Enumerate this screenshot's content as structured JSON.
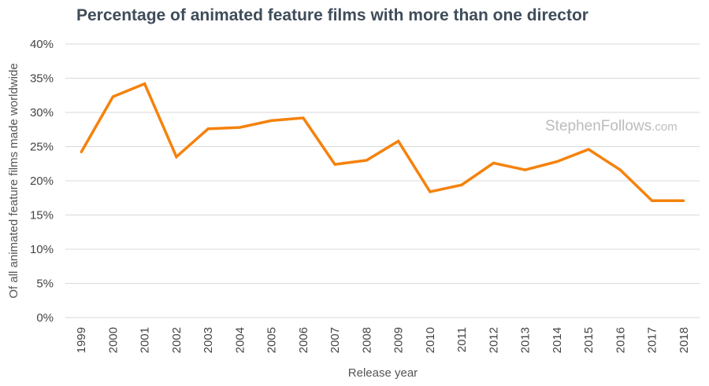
{
  "chart_data": {
    "type": "line",
    "title": "Percentage of animated feature films with more than one director",
    "xlabel": "Release year",
    "ylabel": "Of all animated feature films made worldwide",
    "categories": [
      "1999",
      "2000",
      "2001",
      "2002",
      "2003",
      "2004",
      "2005",
      "2006",
      "2007",
      "2008",
      "2009",
      "2010",
      "2011",
      "2012",
      "2013",
      "2014",
      "2015",
      "2016",
      "2017",
      "2018"
    ],
    "series": [
      {
        "name": "Percentage with more than one director",
        "values": [
          24.2,
          32.3,
          34.2,
          23.5,
          27.6,
          27.8,
          28.8,
          29.2,
          22.4,
          23.0,
          25.8,
          18.4,
          19.4,
          22.6,
          21.6,
          22.8,
          24.6,
          21.6,
          17.1,
          17.1
        ]
      }
    ],
    "ylim": [
      0,
      40
    ],
    "yticks": [
      0,
      5,
      10,
      15,
      20,
      25,
      30,
      35,
      40
    ],
    "ytick_labels": [
      "0%",
      "5%",
      "10%",
      "15%",
      "20%",
      "25%",
      "30%",
      "35%",
      "40%"
    ],
    "grid": true,
    "legend": "none",
    "watermark": {
      "main": "StephenFollows",
      "suffix": ".com"
    },
    "colors": {
      "line": "#f5820d",
      "title": "#3f4c5a",
      "grid": "#d9d9d9",
      "watermark": "#bcbcbc"
    }
  }
}
